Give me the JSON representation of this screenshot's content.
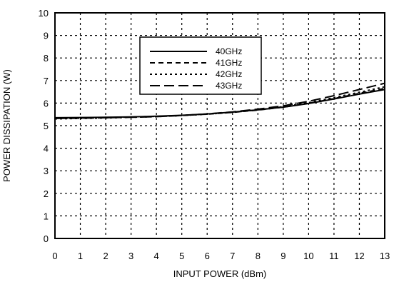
{
  "chart_data": {
    "type": "line",
    "title": "",
    "xlabel": "INPUT POWER (dBm)",
    "ylabel": "POWER DISSIPATION (W)",
    "xlim": [
      0,
      13
    ],
    "ylim": [
      0,
      10
    ],
    "xticks": [
      "0",
      "1",
      "2",
      "3",
      "4",
      "5",
      "6",
      "7",
      "8",
      "9",
      "10",
      "11",
      "12",
      "13"
    ],
    "yticks": [
      "0",
      "1",
      "2",
      "3",
      "4",
      "5",
      "6",
      "7",
      "8",
      "9",
      "10"
    ],
    "grid": true,
    "legend_position": "top-center",
    "x": [
      0,
      1,
      2,
      3,
      4,
      5,
      6,
      7,
      8,
      9,
      10,
      11,
      12,
      13
    ],
    "series": [
      {
        "name": "40GHz",
        "style": "solid",
        "values": [
          5.35,
          5.36,
          5.37,
          5.39,
          5.42,
          5.46,
          5.52,
          5.6,
          5.7,
          5.82,
          5.98,
          6.18,
          6.4,
          6.6
        ]
      },
      {
        "name": "41GHz",
        "style": "dashed",
        "values": [
          5.33,
          5.34,
          5.35,
          5.38,
          5.41,
          5.45,
          5.51,
          5.59,
          5.69,
          5.82,
          5.99,
          6.2,
          6.43,
          6.65
        ]
      },
      {
        "name": "42GHz",
        "style": "dotted",
        "values": [
          5.3,
          5.32,
          5.34,
          5.37,
          5.4,
          5.45,
          5.51,
          5.59,
          5.7,
          5.84,
          6.02,
          6.24,
          6.48,
          6.72
        ]
      },
      {
        "name": "43GHz",
        "style": "long-dash",
        "values": [
          5.32,
          5.33,
          5.35,
          5.37,
          5.4,
          5.45,
          5.52,
          5.61,
          5.73,
          5.88,
          6.08,
          6.33,
          6.6,
          6.88
        ]
      }
    ]
  }
}
